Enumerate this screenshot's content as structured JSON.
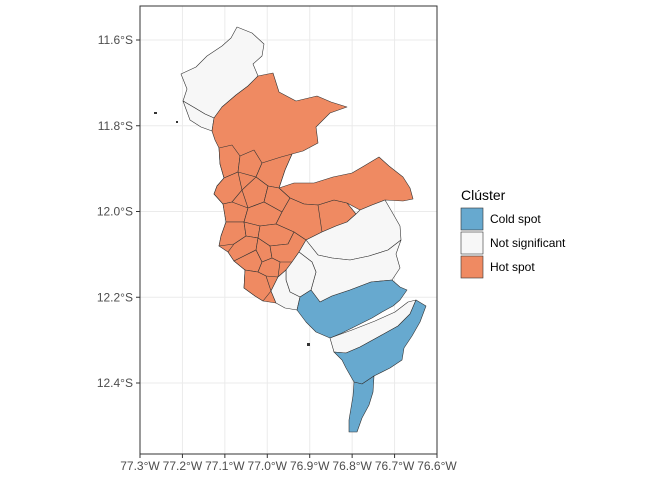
{
  "map": {
    "lat_ticks": [
      {
        "value": -11.6,
        "label": "11.6°S"
      },
      {
        "value": -11.8,
        "label": "11.8°S"
      },
      {
        "value": -12.0,
        "label": "12.0°S"
      },
      {
        "value": -12.2,
        "label": "12.2°S"
      },
      {
        "value": -12.4,
        "label": "12.4°S"
      }
    ],
    "lon_ticks": [
      {
        "value": -77.3,
        "label": "77.3°W"
      },
      {
        "value": -77.2,
        "label": "77.2°W"
      },
      {
        "value": -77.1,
        "label": "77.1°W"
      },
      {
        "value": -77.0,
        "label": "77.0°W"
      },
      {
        "value": -76.9,
        "label": "76.9°W"
      },
      {
        "value": -76.8,
        "label": "76.8°W"
      },
      {
        "value": -76.7,
        "label": "76.7°W"
      },
      {
        "value": -76.6,
        "label": "76.6°W"
      }
    ],
    "colors": {
      "cold_spot": "#67a9cf",
      "not_significant": "#f7f7f7",
      "hot_spot": "#ef8a62"
    }
  },
  "legend": {
    "title": "Clúster",
    "items": [
      {
        "label": "Cold spot",
        "color": "#67a9cf"
      },
      {
        "label": "Not significant",
        "color": "#f7f7f7"
      },
      {
        "label": "Hot spot",
        "color": "#ef8a62"
      }
    ]
  }
}
